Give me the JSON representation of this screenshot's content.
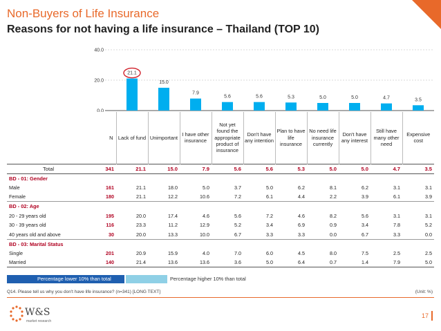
{
  "header": {
    "title": "Non-Buyers of Life Insurance",
    "subtitle": "Reasons for not having a life insurance – Thailand (TOP 10)"
  },
  "chart_data": {
    "type": "bar",
    "categories": [
      "Lack of fund",
      "Unimportant",
      "I have other insurance",
      "Not yet found the appropriate product of insurance",
      "Don't have any intention",
      "Plan to have life insurance",
      "No need life insurance currently",
      "Don't have any interest",
      "Still have many other need",
      "Expensive cost"
    ],
    "values": [
      21.1,
      15.0,
      7.9,
      5.6,
      5.6,
      5.3,
      5.0,
      5.0,
      4.7,
      3.5
    ],
    "value_labels": [
      "21.1",
      "15.0",
      "7.9",
      "5.6",
      "5.6",
      "5.3",
      "5.0",
      "5.0",
      "4.7",
      "3.5"
    ],
    "ylim": [
      0,
      40
    ],
    "yticks": [
      "0.0",
      "20.0",
      "40.0"
    ],
    "ytick_values": [
      0,
      20,
      40
    ],
    "highlight_index": 0,
    "bar_color": "#00aeef",
    "highlight_color": "#d0202a",
    "grid": true
  },
  "table": {
    "n_header": "N",
    "columns": [
      "Lack of fund",
      "Unimportant",
      "I have other insurance",
      "Not yet found the appropriate product of insurance",
      "Don't have any intention",
      "Plan to have life insurance",
      "No need life insurance currently",
      "Don't have any interest",
      "Still have many other need",
      "Expensive cost"
    ],
    "rows": [
      {
        "kind": "total",
        "label": "Total",
        "n": "341",
        "values": [
          "21.1",
          "15.0",
          "7.9",
          "5.6",
          "5.6",
          "5.3",
          "5.0",
          "5.0",
          "4.7",
          "3.5"
        ]
      },
      {
        "kind": "group",
        "label": "BD - 01: Gender"
      },
      {
        "kind": "data",
        "label": "Male",
        "n": "161",
        "values": [
          "21.1",
          "18.0",
          "5.0",
          "3.7",
          "5.0",
          "6.2",
          "8.1",
          "6.2",
          "3.1",
          "3.1"
        ]
      },
      {
        "kind": "data",
        "label": "Female",
        "n": "180",
        "values": [
          "21.1",
          "12.2",
          "10.6",
          "7.2",
          "6.1",
          "4.4",
          "2.2",
          "3.9",
          "6.1",
          "3.9"
        ]
      },
      {
        "kind": "group",
        "label": "BD - 02: Age"
      },
      {
        "kind": "data",
        "label": "20 - 29 years old",
        "n": "195",
        "values": [
          "20.0",
          "17.4",
          "4.6",
          "5.6",
          "7.2",
          "4.6",
          "8.2",
          "5.6",
          "3.1",
          "3.1"
        ]
      },
      {
        "kind": "data",
        "label": "30 - 39 years old",
        "n": "116",
        "values": [
          "23.3",
          "11.2",
          "12.9",
          "5.2",
          "3.4",
          "6.9",
          "0.9",
          "3.4",
          "7.8",
          "5.2"
        ]
      },
      {
        "kind": "data",
        "label": "40 years old and above",
        "n": "30",
        "values": [
          "20.0",
          "13.3",
          "10.0",
          "6.7",
          "3.3",
          "3.3",
          "0.0",
          "6.7",
          "3.3",
          "0.0"
        ]
      },
      {
        "kind": "group",
        "label": "BD - 03: Marital Status"
      },
      {
        "kind": "data",
        "label": "Single",
        "n": "201",
        "values": [
          "20.9",
          "15.9",
          "4.0",
          "7.0",
          "6.0",
          "4.5",
          "8.0",
          "7.5",
          "2.5",
          "2.5"
        ]
      },
      {
        "kind": "data",
        "label": "Married",
        "n": "140",
        "values": [
          "21.4",
          "13.6",
          "13.6",
          "3.6",
          "5.0",
          "6.4",
          "0.7",
          "1.4",
          "7.9",
          "5.0"
        ]
      }
    ]
  },
  "legend": {
    "low_label": "Percentage lower 10% than total",
    "high_label": "Percentage higher 10% than total",
    "low_color": "#1f5fb0",
    "high_color": "#8fd0e6"
  },
  "footer": {
    "question": "Q14. Please tell us why you don't have life insurance? (n=341) [LONG TEXT]",
    "unit": "(Unit: %)",
    "logo_text": "W&S",
    "logo_sub": "market research",
    "page_number": "17"
  }
}
